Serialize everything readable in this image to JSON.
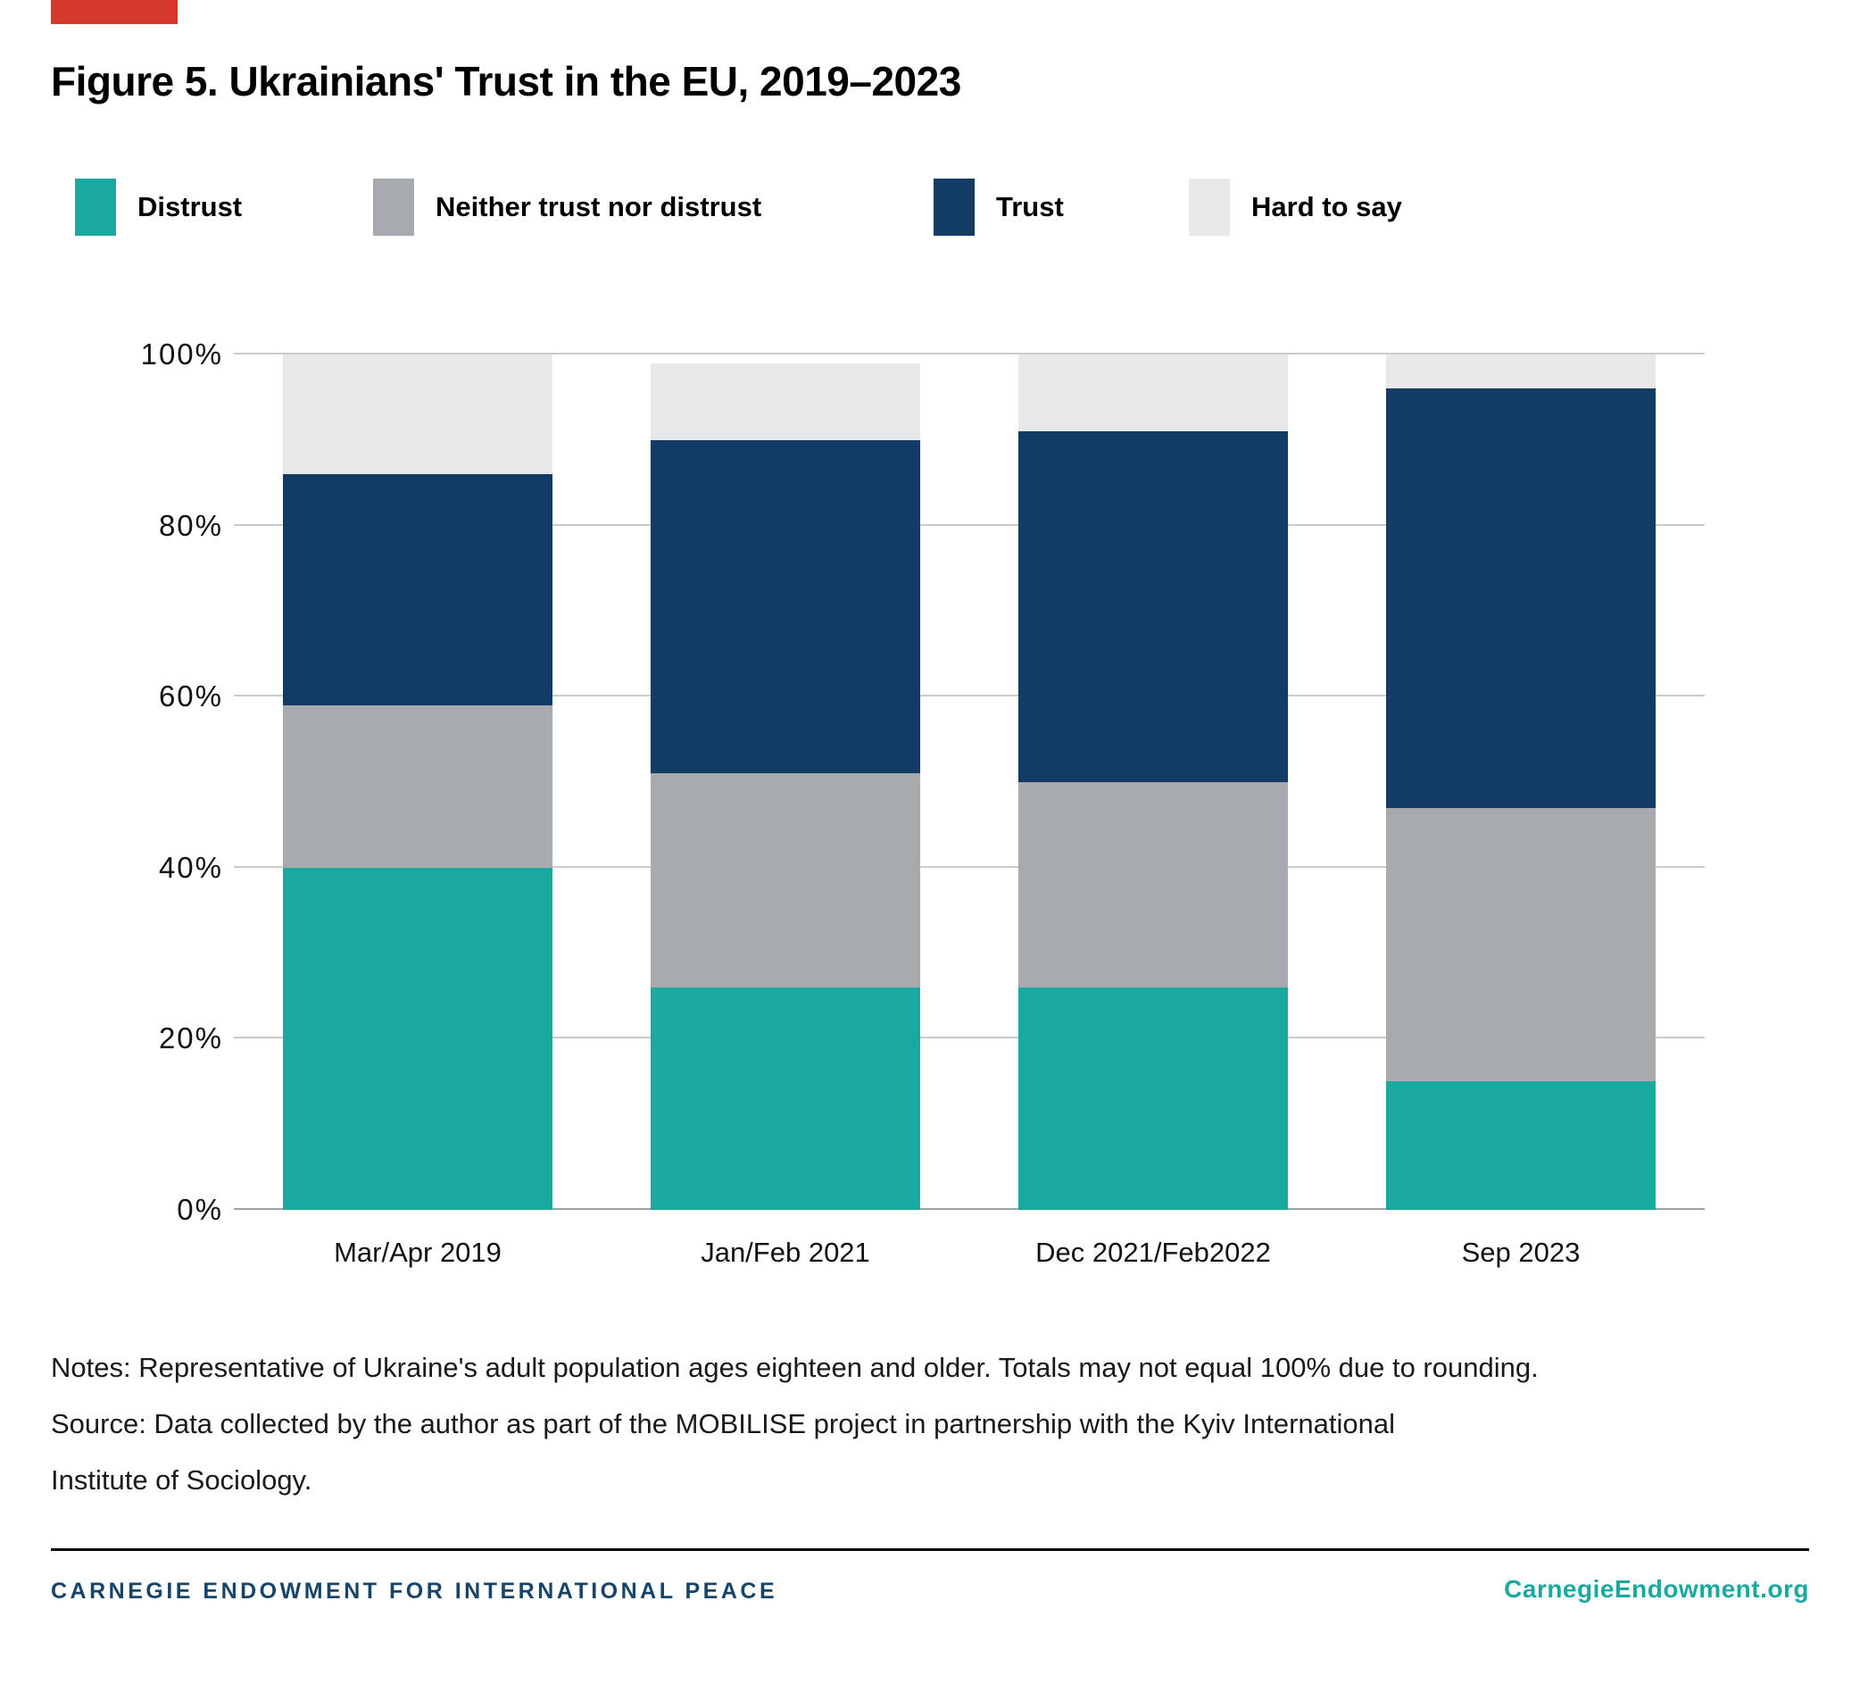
{
  "accent_color": "#d5392b",
  "title": "Figure 5. Ukrainians' Trust in the EU, 2019–2023",
  "chart_data": {
    "type": "bar",
    "stacked": true,
    "title": "Figure 5. Ukrainians' Trust in the EU, 2019–2023",
    "categories": [
      "Mar/Apr 2019",
      "Jan/Feb 2021",
      "Dec 2021/Feb2022",
      "Sep 2023"
    ],
    "series": [
      {
        "name": "Distrust",
        "color": "#1aa9a0",
        "values": [
          40,
          26,
          26,
          15
        ]
      },
      {
        "name": "Neither trust nor distrust",
        "color": "#a7abae",
        "values": [
          19,
          25,
          24,
          32
        ]
      },
      {
        "name": "Trust",
        "color": "#123c63",
        "values": [
          27,
          39,
          41,
          49
        ]
      },
      {
        "name": "Hard to say",
        "color": "#e6e8ea",
        "values": [
          14,
          9,
          9,
          4
        ]
      }
    ],
    "xlabel": "",
    "ylabel": "",
    "ylim": [
      0,
      100
    ],
    "yticks": [
      "0%",
      "20%",
      "40%",
      "60%",
      "80%",
      "100%"
    ],
    "grid": true,
    "legend_position": "top"
  },
  "notes": {
    "line1": "Notes: Representative of Ukraine's adult population ages eighteen and older. Totals may not equal 100% due to rounding.",
    "line2": "Source: Data collected by the author as part of the MOBILISE project in partnership with the Kyiv International",
    "line3": "Institute of Sociology."
  },
  "footer": {
    "org_name": "CARNEGIE ENDOWMENT FOR INTERNATIONAL PEACE",
    "org_color": "#17456a",
    "site_link": "CarnegieEndowment.org",
    "link_color": "#1aa9a0"
  }
}
